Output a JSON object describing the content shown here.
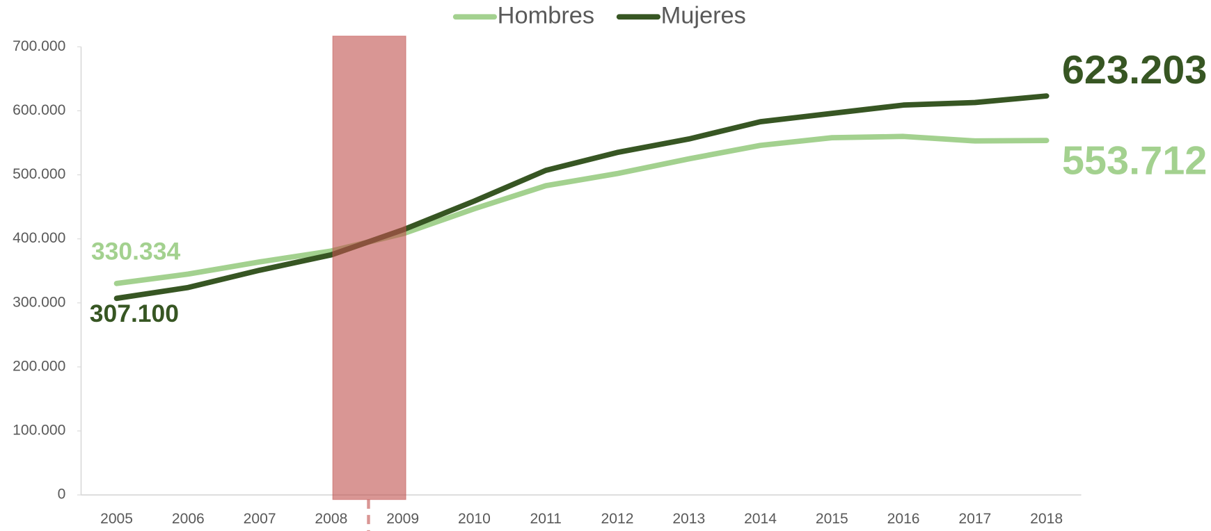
{
  "chart_data": {
    "type": "line",
    "categories": [
      "2005",
      "2006",
      "2007",
      "2008",
      "2009",
      "2010",
      "2011",
      "2012",
      "2013",
      "2014",
      "2015",
      "2016",
      "2017",
      "2018"
    ],
    "series": [
      {
        "name": "Hombres",
        "color": "#a3d18f",
        "values": [
          330334,
          345000,
          364000,
          381000,
          408000,
          447000,
          483000,
          502000,
          525000,
          546000,
          558000,
          560000,
          553000,
          553712
        ],
        "value_labels": [
          "330.334",
          null,
          null,
          null,
          null,
          null,
          null,
          null,
          null,
          null,
          null,
          null,
          null,
          "553.712"
        ]
      },
      {
        "name": "Mujeres",
        "color": "#375623",
        "values": [
          307100,
          324000,
          351000,
          375000,
          414000,
          459000,
          507000,
          535000,
          556000,
          583000,
          596000,
          609000,
          613000,
          623203
        ],
        "value_labels": [
          "307.100",
          null,
          null,
          null,
          null,
          null,
          null,
          null,
          null,
          null,
          null,
          null,
          null,
          "623.203"
        ]
      }
    ],
    "ylim": [
      0,
      700000
    ],
    "yticks": [
      0,
      {
        "value": 100000,
        "label": "100.000"
      },
      {
        "value": 200000,
        "label": "200.000"
      },
      {
        "value": 300000,
        "label": "300.000"
      },
      {
        "value": 400000,
        "label": "400.000"
      },
      {
        "value": 500000,
        "label": "500.000"
      },
      {
        "value": 600000,
        "label": "600.000"
      },
      {
        "value": 700000,
        "label": "700.000"
      }
    ],
    "legend": "top",
    "highlight": {
      "from": "2008",
      "to": "2009",
      "color": "#c0504d"
    }
  }
}
